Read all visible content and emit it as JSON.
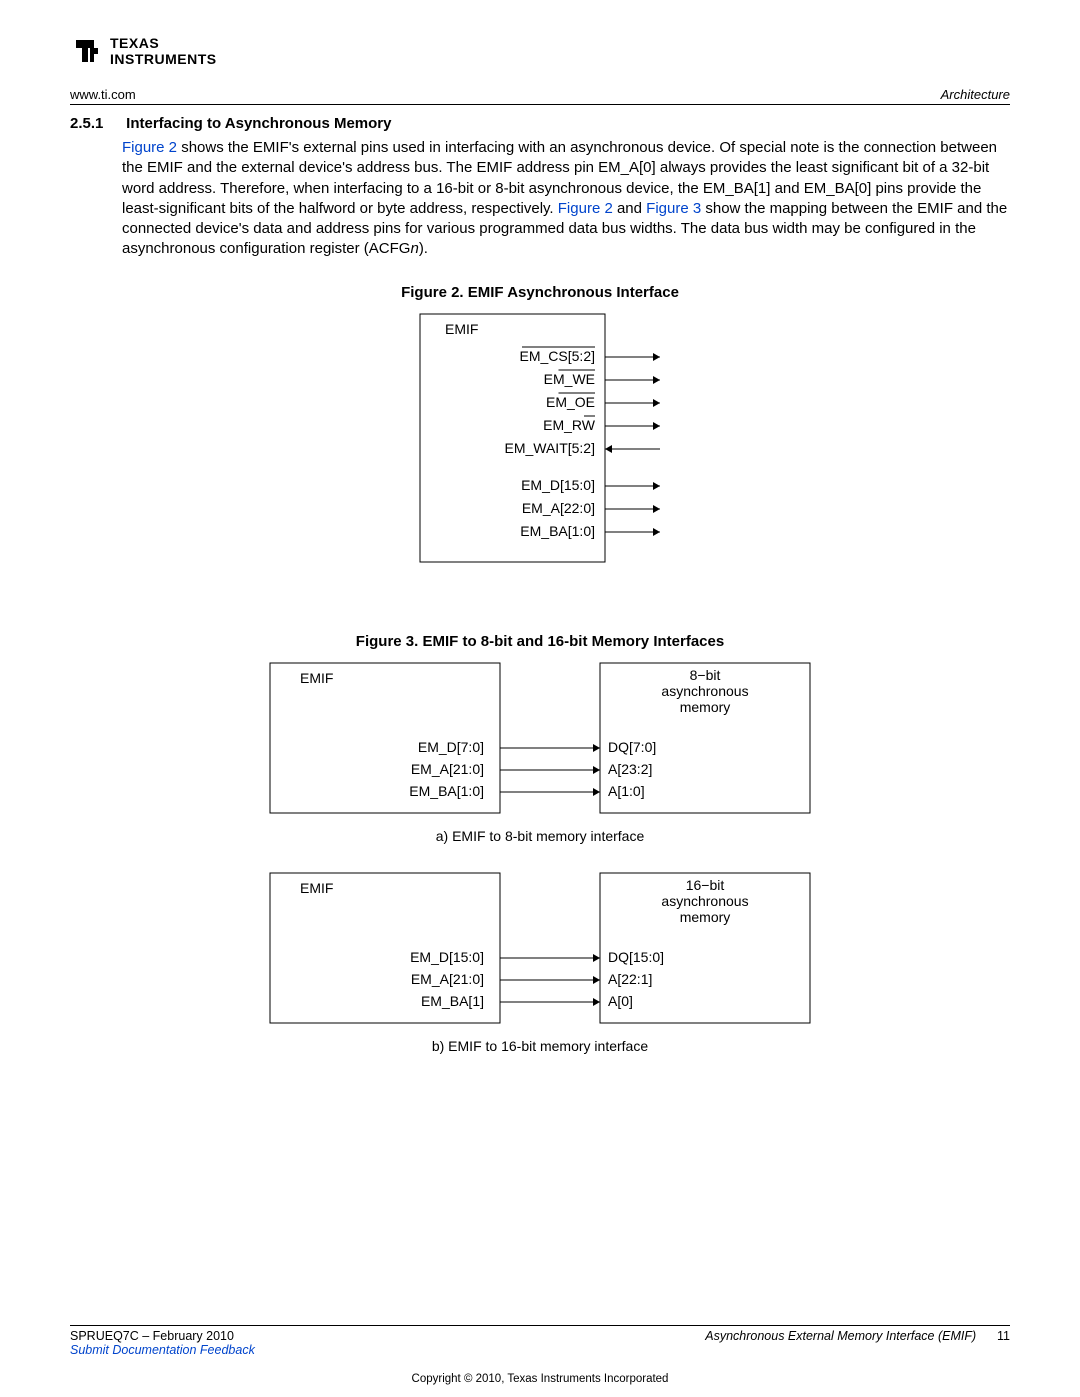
{
  "header": {
    "url": "www.ti.com",
    "section": "Architecture"
  },
  "section": {
    "number": "2.5.1",
    "title": "Interfacing to Asynchronous Memory"
  },
  "paragraph": {
    "t1": "Figure 2",
    "t2": " shows the EMIF's external pins used in interfacing with an asynchronous device. Of special note is the connection between the EMIF and the external device's address bus. The EMIF address pin EM_A[0] always provides the least significant bit of a 32-bit word address. Therefore, when interfacing to a 16-bit or 8-bit asynchronous device, the EM_BA[1] and EM_BA[0] pins provide the least-significant bits of the halfword or byte address, respectively. ",
    "t3": "Figure 2",
    "t4": " and ",
    "t5": "Figure 3",
    "t6": " show the mapping between the EMIF and the connected device's data and address pins for various programmed data bus widths. The data bus width may be configured in the asynchronous configuration register (ACFG",
    "t7": "n",
    "t8": ")."
  },
  "figure2": {
    "caption": "Figure 2. EMIF Asynchronous Interface",
    "block_label": "EMIF",
    "signals": [
      {
        "name": "EM_CS[5:2]",
        "overline": true,
        "dir": "out"
      },
      {
        "name": "EM_WE",
        "overline": true,
        "dir": "out"
      },
      {
        "name": "EM_OE",
        "overline": true,
        "dir": "out"
      },
      {
        "name": "EM_RW",
        "overline": "W",
        "dir": "out"
      },
      {
        "name": "EM_WAIT[5:2]",
        "overline": false,
        "dir": "in"
      },
      {
        "name": "",
        "overline": false,
        "dir": "gap"
      },
      {
        "name": "EM_D[15:0]",
        "overline": false,
        "dir": "out"
      },
      {
        "name": "EM_A[22:0]",
        "overline": false,
        "dir": "out"
      },
      {
        "name": "EM_BA[1:0]",
        "overline": false,
        "dir": "out"
      }
    ]
  },
  "figure3": {
    "caption": "Figure 3. EMIF to 8-bit and 16-bit Memory Interfaces",
    "sub_a": "a) EMIF to 8-bit memory interface",
    "sub_b": "b) EMIF to 16-bit memory interface",
    "block_a": {
      "left_label": "EMIF",
      "right_label_l1": "8−bit",
      "right_label_l2": "asynchronous",
      "right_label_l3": "memory",
      "rows": [
        {
          "left": "EM_D[7:0]",
          "right": "DQ[7:0]"
        },
        {
          "left": "EM_A[21:0]",
          "right": "A[23:2]"
        },
        {
          "left": "EM_BA[1:0]",
          "right": "A[1:0]"
        }
      ]
    },
    "block_b": {
      "left_label": "EMIF",
      "right_label_l1": "16−bit",
      "right_label_l2": "asynchronous",
      "right_label_l3": "memory",
      "rows": [
        {
          "left": "EM_D[15:0]",
          "right": "DQ[15:0]"
        },
        {
          "left": "EM_A[21:0]",
          "right": "A[22:1]"
        },
        {
          "left": "EM_BA[1]",
          "right": "A[0]"
        }
      ]
    }
  },
  "footer": {
    "doc_id": "SPRUEQ7C – February 2010",
    "title": "Asynchronous External Memory Interface (EMIF)",
    "page": "11",
    "feedback": "Submit Documentation Feedback",
    "copyright": "Copyright © 2010, Texas Instruments Incorporated"
  },
  "style": {
    "link_color": "#0044cc",
    "text_color": "#000000",
    "line_color": "#000000",
    "font_size_body": 15,
    "font_size_small": 13
  }
}
